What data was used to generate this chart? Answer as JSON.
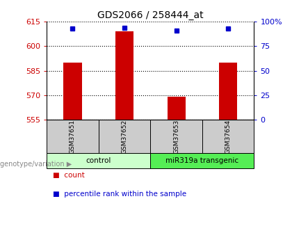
{
  "title": "GDS2066 / 258444_at",
  "samples": [
    "GSM37651",
    "GSM37652",
    "GSM37653",
    "GSM37654"
  ],
  "bar_values": [
    590,
    609,
    569,
    590
  ],
  "bar_bottom": 555,
  "percentile_values": [
    93,
    94,
    91,
    93
  ],
  "ylim_left": [
    555,
    615
  ],
  "ylim_right": [
    0,
    100
  ],
  "yticks_left": [
    555,
    570,
    585,
    600,
    615
  ],
  "yticks_right": [
    0,
    25,
    50,
    75,
    100
  ],
  "bar_color": "#cc0000",
  "dot_color": "#0000cc",
  "grid_color": "#000000",
  "groups": [
    {
      "label": "control",
      "samples": [
        0,
        1
      ],
      "color": "#ccffcc"
    },
    {
      "label": "miR319a transgenic",
      "samples": [
        2,
        3
      ],
      "color": "#55ee55"
    }
  ],
  "group_label": "genotype/variation",
  "legend_bar_label": "count",
  "legend_dot_label": "percentile rank within the sample",
  "tick_label_color_left": "#cc0000",
  "tick_label_color_right": "#0000cc",
  "bg_color": "#ffffff",
  "sample_box_color": "#cccccc"
}
